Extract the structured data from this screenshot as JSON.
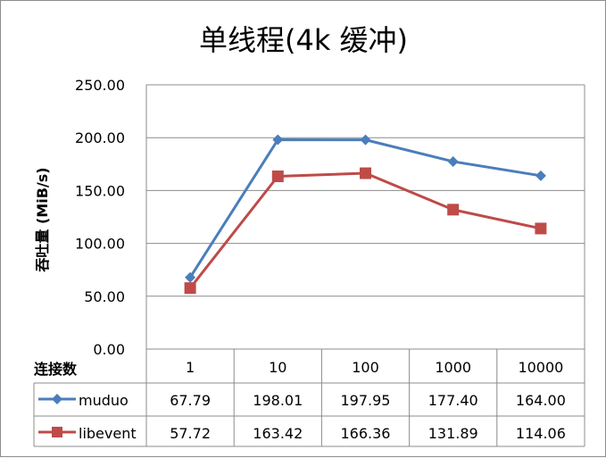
{
  "chart_data": {
    "type": "line",
    "title": "单线程(4k 缓冲)",
    "xlabel": "连接数",
    "ylabel": "吞吐量 (MiB/s)",
    "categories": [
      "1",
      "10",
      "100",
      "1000",
      "10000"
    ],
    "ylim": [
      0,
      250
    ],
    "yticks": [
      "0.00",
      "50.00",
      "100.00",
      "150.00",
      "200.00",
      "250.00"
    ],
    "grid": true,
    "legend": "data-table",
    "series": [
      {
        "name": "muduo",
        "values": [
          67.79,
          198.01,
          197.95,
          177.4,
          164.0
        ],
        "labels": [
          "67.79",
          "198.01",
          "197.95",
          "177.40",
          "164.00"
        ],
        "color": "#4a7ebb",
        "marker": "diamond"
      },
      {
        "name": "libevent",
        "values": [
          57.72,
          163.42,
          166.36,
          131.89,
          114.06
        ],
        "labels": [
          "57.72",
          "163.42",
          "166.36",
          "131.89",
          "114.06"
        ],
        "color": "#be4b48",
        "marker": "square"
      }
    ]
  }
}
